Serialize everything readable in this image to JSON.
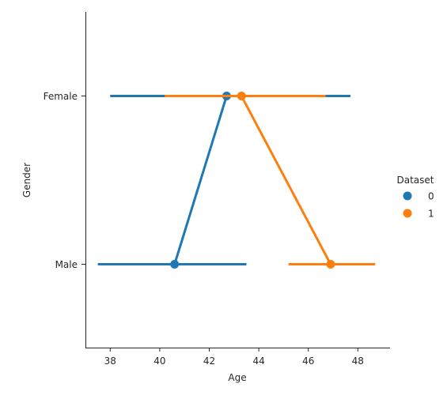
{
  "chart_data": {
    "type": "point",
    "xlabel": "Age",
    "ylabel": "Gender",
    "categories": [
      "Female",
      "Male"
    ],
    "xlim": [
      37,
      49.3
    ],
    "xticks": [
      38,
      40,
      42,
      44,
      46,
      48
    ],
    "legend": {
      "title": "Dataset",
      "placement": "right"
    },
    "grid": false,
    "series": [
      {
        "name": "0",
        "color": "#1f77b4",
        "points": [
          {
            "category": "Female",
            "mean": 42.7,
            "ci": [
              38.0,
              47.7
            ]
          },
          {
            "category": "Male",
            "mean": 40.6,
            "ci": [
              37.5,
              43.5
            ]
          }
        ]
      },
      {
        "name": "1",
        "color": "#ff7f0e",
        "points": [
          {
            "category": "Female",
            "mean": 43.3,
            "ci": [
              40.2,
              46.7
            ]
          },
          {
            "category": "Male",
            "mean": 46.9,
            "ci": [
              45.2,
              48.7
            ]
          }
        ]
      }
    ]
  }
}
